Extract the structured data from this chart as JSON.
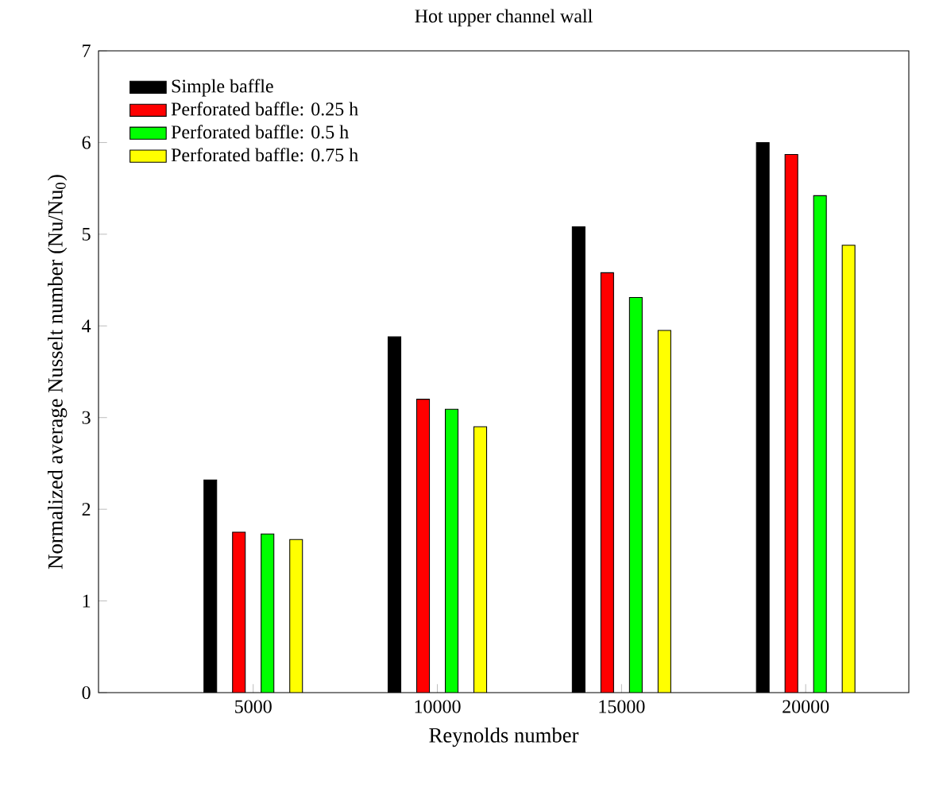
{
  "chart_data": {
    "type": "bar",
    "title": "Hot upper channel wall",
    "xlabel": "Reynolds number",
    "ylabel": "Normalized average Nusselt number (Nu/Nu$_{0}$)",
    "categories": [
      "5000",
      "10000",
      "15000",
      "20000"
    ],
    "series": [
      {
        "name": "Simple baffle",
        "color": "#000000",
        "values": [
          2.32,
          3.88,
          5.08,
          6.0
        ]
      },
      {
        "name": "Perforated baffle: 0.25 h",
        "color": "#ff0000",
        "values": [
          1.75,
          3.2,
          4.58,
          5.87
        ]
      },
      {
        "name": "Perforated baffle: 0.5 h",
        "color": "#00ff00",
        "values": [
          1.73,
          3.09,
          4.31,
          5.42
        ]
      },
      {
        "name": "Perforated baffle: 0.75 h",
        "color": "#ffff00",
        "values": [
          1.67,
          2.9,
          3.95,
          4.88
        ]
      }
    ],
    "ylim": [
      0,
      7
    ],
    "yticks": [
      0,
      1,
      2,
      3,
      4,
      5,
      6,
      7
    ],
    "legend": "top left",
    "grid": false
  }
}
